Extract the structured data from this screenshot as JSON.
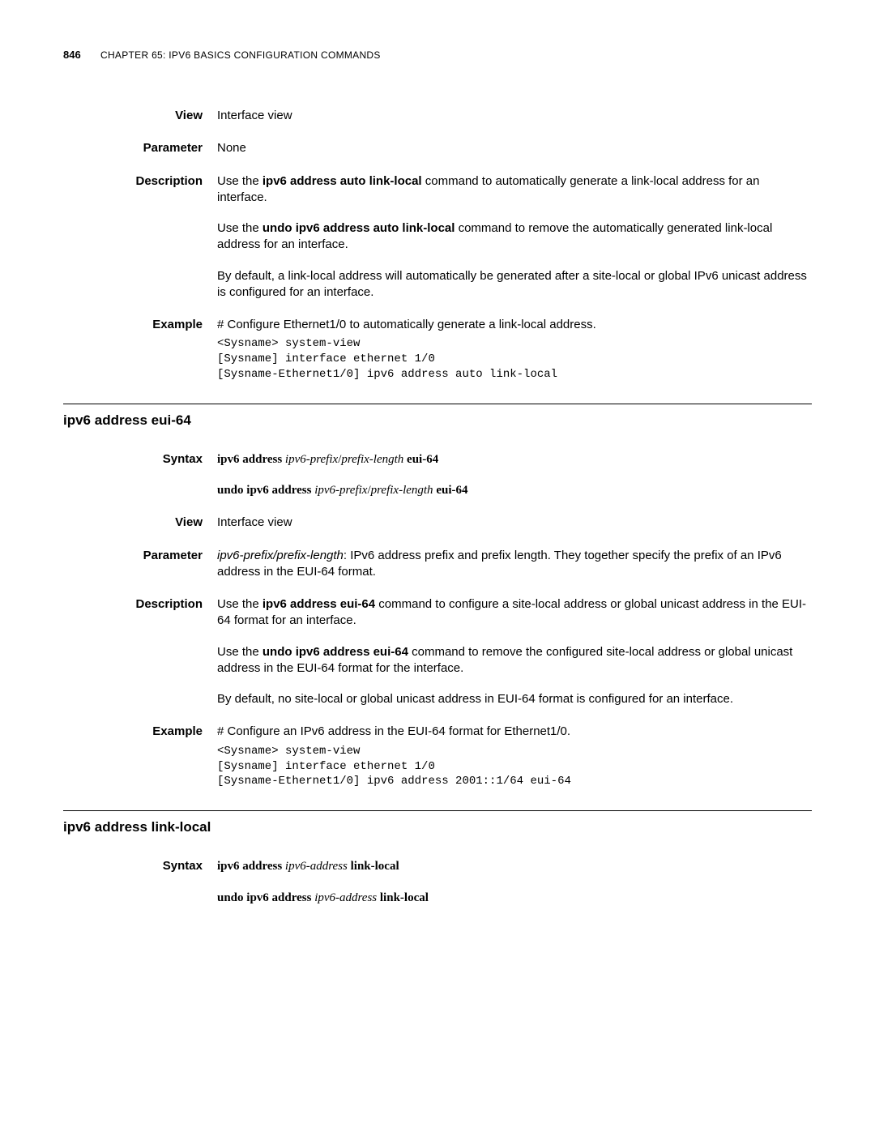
{
  "header": {
    "page_number": "846",
    "chapter_prefix": "C",
    "chapter_text": "HAPTER",
    "chapter_num": " 65: IP",
    "chapter_v6": "V",
    "chapter_rest1": "6 B",
    "chapter_rest2": "ASICS",
    "chapter_rest3": " C",
    "chapter_rest4": "ONFIGURATION",
    "chapter_rest5": " C",
    "chapter_rest6": "OMMANDS"
  },
  "section1": {
    "rows": {
      "view": {
        "label": "View",
        "text": "Interface view"
      },
      "parameter": {
        "label": "Parameter",
        "text": "None"
      },
      "description": {
        "label": "Description",
        "p1_pre": "Use the ",
        "p1_cmd": "ipv6 address auto link-local",
        "p1_post": " command to automatically generate a link-local address for an interface.",
        "p2_pre": "Use the ",
        "p2_cmd": "undo ipv6 address auto link-local",
        "p2_post": " command to remove the automatically generated link-local address for an interface.",
        "p3": "By default, a link-local address will automatically be generated after a site-local or global IPv6 unicast address is configured for an interface."
      },
      "example": {
        "label": "Example",
        "intro": "# Configure Ethernet1/0 to automatically generate a link-local address.",
        "code": "<Sysname> system-view\n[Sysname] interface ethernet 1/0\n[Sysname-Ethernet1/0] ipv6 address auto link-local"
      }
    }
  },
  "section2": {
    "title": "ipv6 address eui-64",
    "rows": {
      "syntax": {
        "label": "Syntax",
        "line1": {
          "k1": "ipv6 address ",
          "a1": "ipv6-prefix",
          "s1": "/",
          "a2": "prefix-length",
          "k2": " eui-64"
        },
        "line2": {
          "k1": "undo ipv6 address ",
          "a1": "ipv6-prefix",
          "s1": "/",
          "a2": "prefix-length",
          "k2": " eui-64"
        }
      },
      "view": {
        "label": "View",
        "text": "Interface view"
      },
      "parameter": {
        "label": "Parameter",
        "arg": "ipv6-prefix/prefix-length",
        "text": ": IPv6 address prefix and prefix length. They together specify the prefix of an IPv6 address in the EUI-64 format."
      },
      "description": {
        "label": "Description",
        "p1_pre": "Use the ",
        "p1_cmd": "ipv6 address eui-64",
        "p1_post": " command to configure a site-local address or global unicast address in the EUI-64 format for an interface.",
        "p2_pre": "Use the ",
        "p2_cmd": "undo ipv6 address eui-64",
        "p2_post": " command to remove the configured site-local address or global unicast address in the EUI-64 format for the interface.",
        "p3": "By default, no site-local or global unicast address in EUI-64 format is configured for an interface."
      },
      "example": {
        "label": "Example",
        "intro": "# Configure an IPv6 address in the EUI-64 format for Ethernet1/0.",
        "code": "<Sysname> system-view\n[Sysname] interface ethernet 1/0\n[Sysname-Ethernet1/0] ipv6 address 2001::1/64 eui-64"
      }
    }
  },
  "section3": {
    "title": "ipv6 address link-local",
    "rows": {
      "syntax": {
        "label": "Syntax",
        "line1": {
          "k1": "ipv6 address ",
          "a1": "ipv6-address",
          "k2": " link-local"
        },
        "line2": {
          "k1": "undo ipv6 address ",
          "a1": "ipv6-address",
          "k2": " link-local"
        }
      }
    }
  }
}
